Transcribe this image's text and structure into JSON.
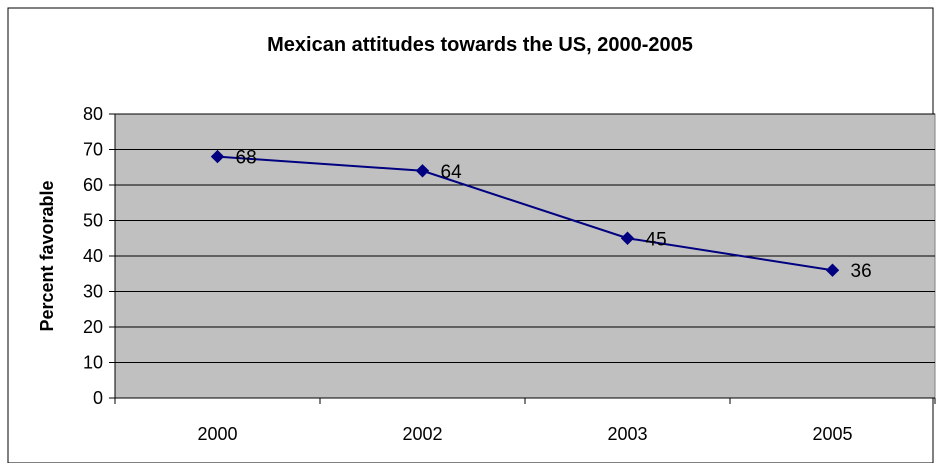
{
  "chart_data": {
    "type": "line",
    "title": "Mexican attitudes towards the US, 2000-2005",
    "xlabel": "",
    "ylabel": "Percent favorable",
    "categories": [
      "2000",
      "2002",
      "2003",
      "2005"
    ],
    "series": [
      {
        "values": [
          68,
          64,
          45,
          36
        ]
      }
    ],
    "ylim": [
      0,
      80
    ],
    "yticks": [
      0,
      10,
      20,
      30,
      40,
      50,
      60,
      70,
      80
    ],
    "grid": true,
    "legend": "none",
    "data_labels": true,
    "colors": {
      "plot_background": "#c0c0c0",
      "line": "#000080",
      "marker": "#000080",
      "gridline": "#000000",
      "frame": "#000000"
    }
  }
}
